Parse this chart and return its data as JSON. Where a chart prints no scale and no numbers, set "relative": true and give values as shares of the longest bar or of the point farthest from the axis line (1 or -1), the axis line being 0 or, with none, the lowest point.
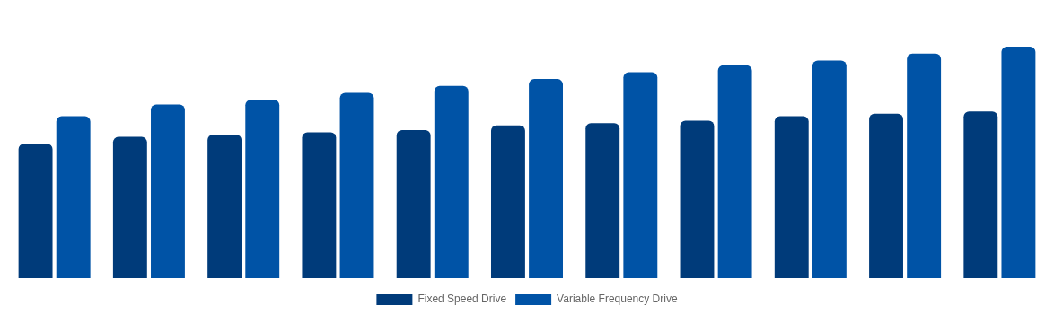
{
  "chart_data": {
    "type": "bar",
    "relative": true,
    "categories": [
      null,
      null,
      null,
      null,
      null,
      null,
      null,
      null,
      null,
      null,
      null
    ],
    "series": [
      {
        "name": "Fixed Speed Drive",
        "color": "#003b7a",
        "values": [
          0.58,
          0.61,
          0.62,
          0.63,
          0.64,
          0.66,
          0.67,
          0.68,
          0.7,
          0.71,
          0.72
        ]
      },
      {
        "name": "Variable Frequency Drive",
        "color": "#0053a6",
        "values": [
          0.7,
          0.75,
          0.77,
          0.8,
          0.83,
          0.86,
          0.89,
          0.92,
          0.94,
          0.97,
          1
        ]
      }
    ],
    "grid": false,
    "legend": "bottom"
  }
}
